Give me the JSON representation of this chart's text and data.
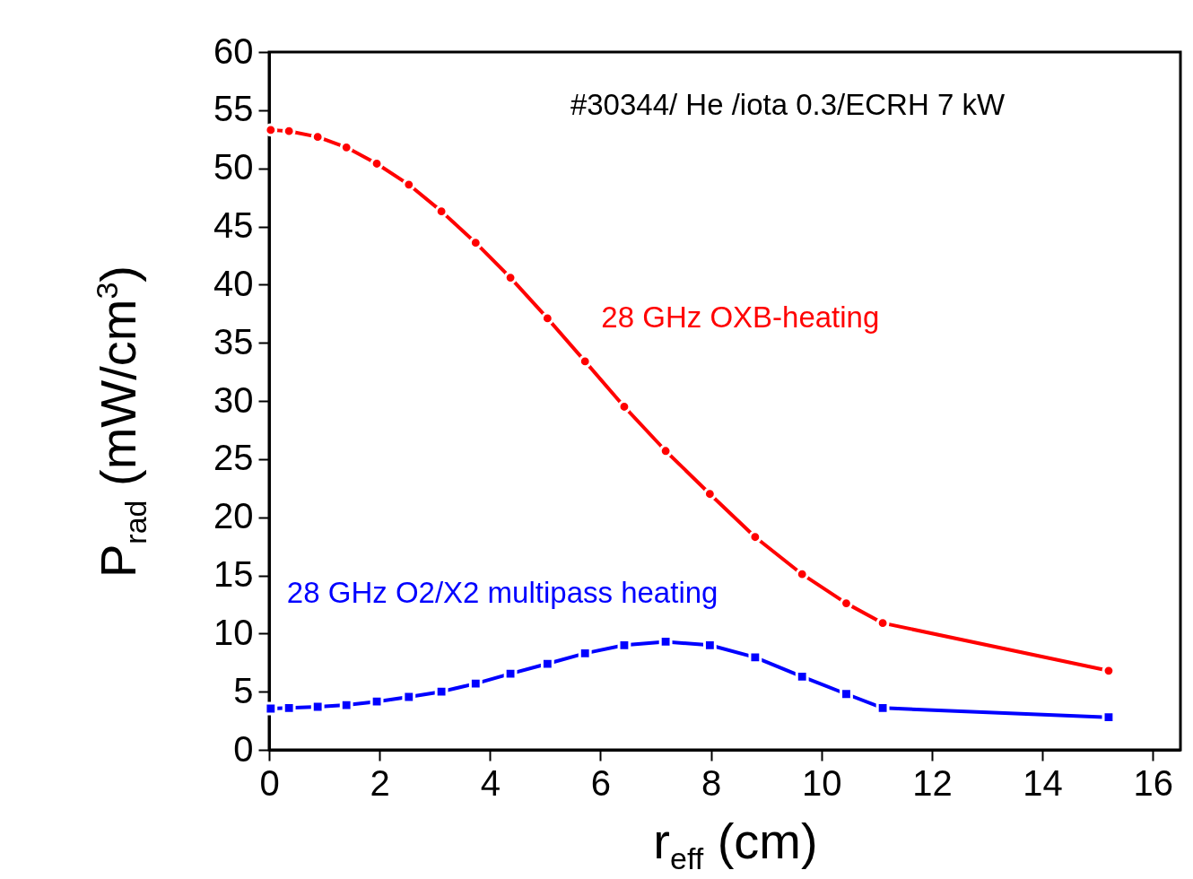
{
  "chart_data": {
    "type": "line",
    "xlabel": "r$_{eff}$ (cm)",
    "ylabel": "P$_{rad}$ (mW/cm$^{3}$)",
    "annotations": [
      "#30344/ He /iota 0.3/ECRH 7 kW"
    ],
    "xlim": [
      0,
      16.5
    ],
    "ylim": [
      0,
      60
    ],
    "xticks": [
      0,
      2,
      4,
      6,
      8,
      10,
      12,
      14,
      16
    ],
    "yticks": [
      0,
      5,
      10,
      15,
      20,
      25,
      30,
      35,
      40,
      45,
      50,
      55,
      60
    ],
    "grid": false,
    "line_style": "solid",
    "x": [
      0.03,
      0.36,
      0.88,
      1.4,
      1.95,
      2.53,
      3.12,
      3.74,
      4.37,
      5.04,
      5.72,
      6.43,
      7.18,
      7.98,
      8.8,
      9.65,
      10.45,
      11.11,
      15.2
    ],
    "series": [
      {
        "name": "28 GHz OXB-heating",
        "color": "#ff0000",
        "marker": "circle",
        "values": [
          53.3,
          53.2,
          52.7,
          51.8,
          50.4,
          48.6,
          46.3,
          43.6,
          40.6,
          37.1,
          33.4,
          29.5,
          25.7,
          22.0,
          18.3,
          15.1,
          12.6,
          10.9,
          6.8
        ]
      },
      {
        "name": "28 GHz O2/X2 multipass heating",
        "color": "#0000ff",
        "marker": "square",
        "values": [
          3.55,
          3.6,
          3.7,
          3.85,
          4.15,
          4.55,
          5.0,
          5.7,
          6.55,
          7.4,
          8.3,
          9.0,
          9.3,
          9.0,
          7.95,
          6.3,
          4.8,
          3.6,
          2.8
        ]
      }
    ]
  }
}
